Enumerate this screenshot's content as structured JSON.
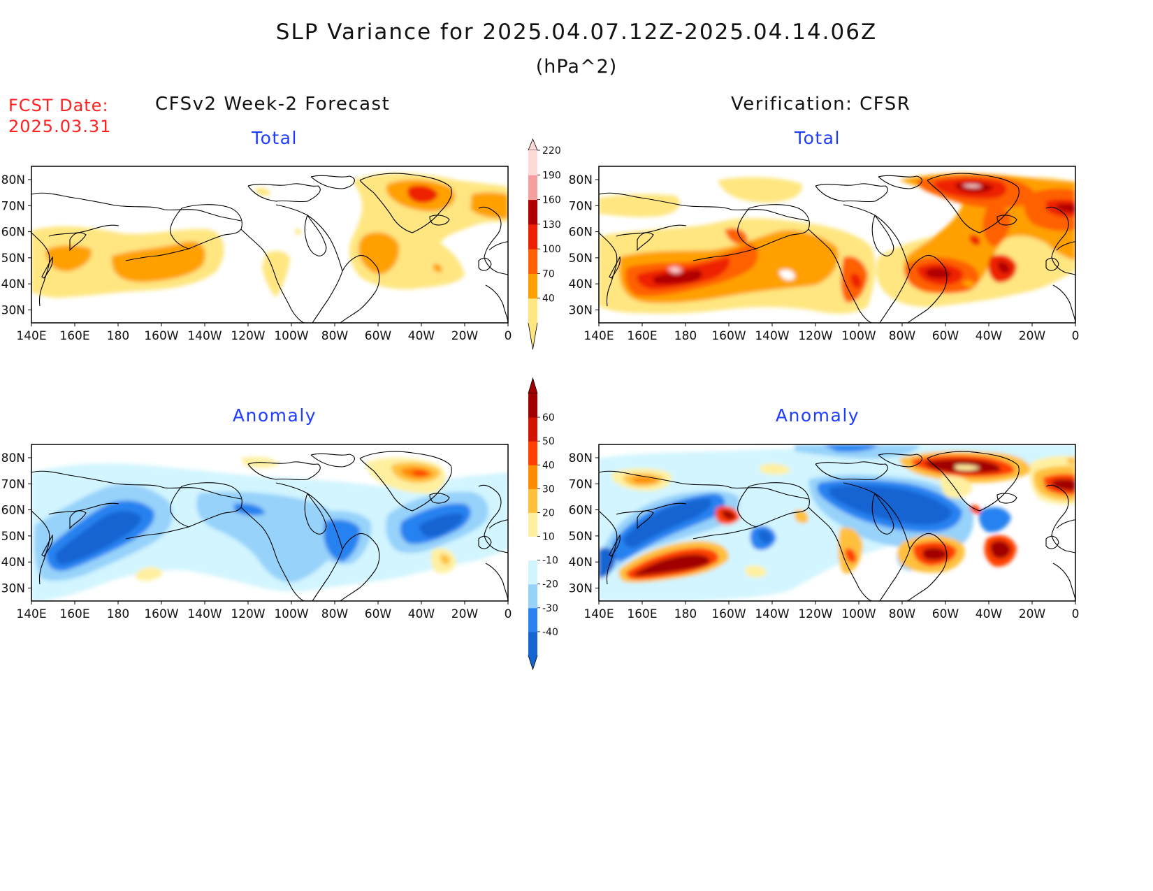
{
  "header": {
    "title": "SLP Variance for 2025.04.07.12Z-2025.04.14.06Z",
    "units": "(hPa^2)",
    "fcst_date_label": "FCST Date:",
    "fcst_date_value": "2025.03.31"
  },
  "columns": {
    "left": "CFSv2 Week-2 Forecast",
    "right": "Verification: CFSR"
  },
  "panel_titles": {
    "total": "Total",
    "anomaly": "Anomaly"
  },
  "axes": {
    "lat_labels": [
      "80N",
      "70N",
      "60N",
      "50N",
      "40N",
      "30N"
    ],
    "lon_labels": [
      "140E",
      "160E",
      "180",
      "160W",
      "140W",
      "120W",
      "100W",
      "80W",
      "60W",
      "40W",
      "20W",
      "0"
    ]
  },
  "colorbars": {
    "total": {
      "levels": [
        "40",
        "70",
        "100",
        "130",
        "160",
        "190",
        "220"
      ],
      "colors": [
        "#ffe680",
        "#ffa000",
        "#ff6000",
        "#ee2000",
        "#b00000",
        "#f4a0a0",
        "#ffd8d8"
      ]
    },
    "anomaly": {
      "levels": [
        "-40",
        "-30",
        "-20",
        "-10",
        "10",
        "20",
        "30",
        "40",
        "50",
        "60"
      ],
      "colors": [
        "#1464d2",
        "#2882f0",
        "#96d2fa",
        "#d2f5ff",
        "#ffffff",
        "#fff0a0",
        "#ffc03c",
        "#ff8c00",
        "#ff4000",
        "#d21400",
        "#a00000"
      ]
    }
  }
}
